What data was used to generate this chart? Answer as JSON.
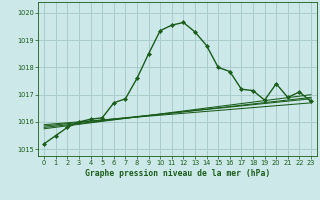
{
  "title": "Graphe pression niveau de la mer (hPa)",
  "bg_color": "#cce8e8",
  "grid_color": "#aacccc",
  "line_color": "#1a5c1a",
  "xlim": [
    -0.5,
    23.5
  ],
  "ylim": [
    1014.75,
    1020.4
  ],
  "yticks": [
    1015,
    1016,
    1017,
    1018,
    1019,
    1020
  ],
  "xticks": [
    0,
    1,
    2,
    3,
    4,
    5,
    6,
    7,
    8,
    9,
    10,
    11,
    12,
    13,
    14,
    15,
    16,
    17,
    18,
    19,
    20,
    21,
    22,
    23
  ],
  "series_main": {
    "x": [
      0,
      1,
      2,
      3,
      4,
      5,
      6,
      7,
      8,
      9,
      10,
      11,
      12,
      13,
      14,
      15,
      16,
      17,
      18,
      19,
      20,
      21,
      22,
      23
    ],
    "y": [
      1015.2,
      1015.5,
      1015.8,
      1016.0,
      1016.1,
      1016.15,
      1016.7,
      1016.85,
      1017.6,
      1018.5,
      1019.35,
      1019.55,
      1019.65,
      1019.3,
      1018.8,
      1018.0,
      1017.85,
      1017.2,
      1017.15,
      1016.8,
      1017.4,
      1016.9,
      1017.1,
      1016.75
    ]
  },
  "series_flat1": {
    "x": [
      0,
      23
    ],
    "y": [
      1015.9,
      1016.7
    ]
  },
  "series_flat2": {
    "x": [
      0,
      23
    ],
    "y": [
      1015.85,
      1016.85
    ]
  },
  "series_flat3": {
    "x": [
      0,
      23
    ],
    "y": [
      1015.8,
      1016.9
    ]
  },
  "series_flat4": {
    "x": [
      0,
      23
    ],
    "y": [
      1015.75,
      1017.0
    ]
  }
}
